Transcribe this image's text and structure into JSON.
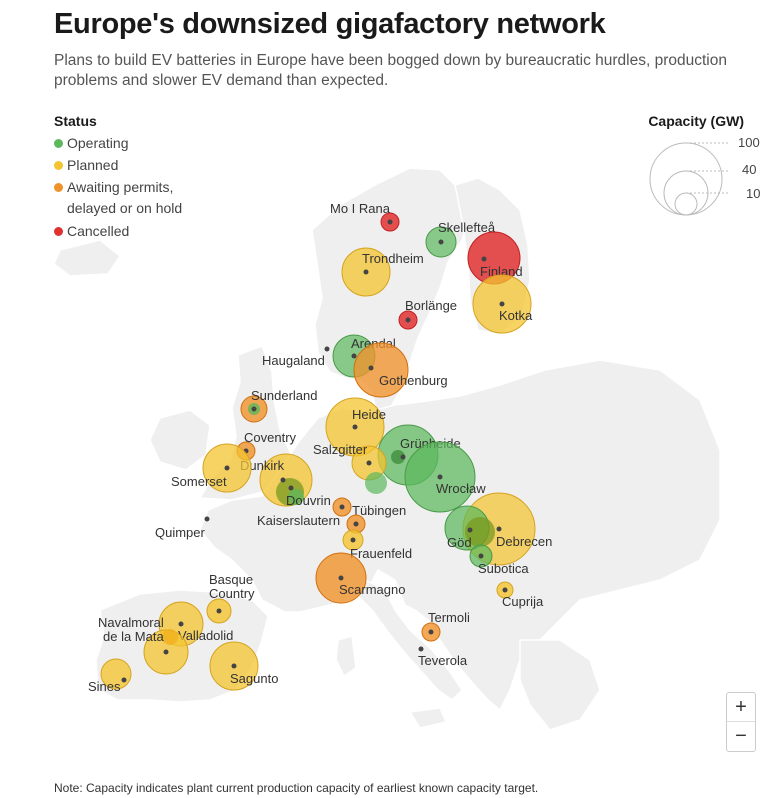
{
  "header": {
    "title": "Europe's downsized gigafactory network",
    "subtitle": "Plans to build EV batteries in Europe have been bogged down by bureaucratic hurdles, production problems and slower EV demand than expected."
  },
  "status_legend": {
    "heading": "Status",
    "items": [
      {
        "label": "Operating",
        "color": "#5cb85c"
      },
      {
        "label": "Planned",
        "color": "#f4c430"
      },
      {
        "label": "Awaiting permits,\ndelayed or on hold",
        "color": "#f0922b"
      },
      {
        "label": "Cancelled",
        "color": "#e03131"
      }
    ]
  },
  "capacity_legend": {
    "heading": "Capacity (GW)",
    "values": [
      "100",
      "40",
      "10"
    ]
  },
  "status_colors": {
    "operating": "#5cb85c",
    "planned": "#f4c430",
    "delayed": "#f0922b",
    "cancelled": "#e03131"
  },
  "sites": [
    {
      "name": "Mo I Rana",
      "status": "cancelled",
      "capacity": "small"
    },
    {
      "name": "Skellefteå",
      "status": "operating",
      "capacity": "small"
    },
    {
      "name": "Finland",
      "status": "cancelled",
      "capacity": "large"
    },
    {
      "name": "Trondheim",
      "status": "planned",
      "capacity": "medium"
    },
    {
      "name": "Borlänge",
      "status": "cancelled",
      "capacity": "small"
    },
    {
      "name": "Kotka",
      "status": "planned",
      "capacity": "medium"
    },
    {
      "name": "Arendal",
      "status": "operating",
      "capacity": "medium"
    },
    {
      "name": "Haugaland",
      "status": "",
      "capacity": "none"
    },
    {
      "name": "Gothenburg",
      "status": "delayed",
      "capacity": "medium"
    },
    {
      "name": "Sunderland",
      "status": "delayed",
      "capacity": "small"
    },
    {
      "name": "Heide",
      "status": "planned",
      "capacity": "medium"
    },
    {
      "name": "Grünheide",
      "status": "operating",
      "capacity": "large"
    },
    {
      "name": "Coventry",
      "status": "delayed",
      "capacity": "small"
    },
    {
      "name": "Salzgitter",
      "status": "planned",
      "capacity": "small"
    },
    {
      "name": "Dunkirk",
      "status": "planned",
      "capacity": "medium"
    },
    {
      "name": "Somerset",
      "status": "planned",
      "capacity": "medium"
    },
    {
      "name": "Wrocław",
      "status": "operating",
      "capacity": "large"
    },
    {
      "name": "Douvrin",
      "status": "operating",
      "capacity": "small"
    },
    {
      "name": "Tübingen",
      "status": "delayed",
      "capacity": "small"
    },
    {
      "name": "Kaiserslautern",
      "status": "delayed",
      "capacity": "small"
    },
    {
      "name": "Quimper",
      "status": "",
      "capacity": "none"
    },
    {
      "name": "Göd",
      "status": "operating",
      "capacity": "medium"
    },
    {
      "name": "Debrecen",
      "status": "planned",
      "capacity": "large"
    },
    {
      "name": "Frauenfeld",
      "status": "planned",
      "capacity": "small"
    },
    {
      "name": "Subotica",
      "status": "operating",
      "capacity": "small"
    },
    {
      "name": "Scarmagno",
      "status": "delayed",
      "capacity": "medium"
    },
    {
      "name": "Cuprija",
      "status": "planned",
      "capacity": "small"
    },
    {
      "name": "Basque\nCountry",
      "status": "planned",
      "capacity": "small"
    },
    {
      "name": "Navalmoral\nde la Mata",
      "status": "planned",
      "capacity": "medium"
    },
    {
      "name": "Valladolid",
      "status": "planned",
      "capacity": "medium"
    },
    {
      "name": "Termoli",
      "status": "delayed",
      "capacity": "small"
    },
    {
      "name": "Teverola",
      "status": "",
      "capacity": "none"
    },
    {
      "name": "Sagunto",
      "status": "planned",
      "capacity": "medium"
    },
    {
      "name": "Sines",
      "status": "planned",
      "capacity": "small"
    }
  ],
  "zoom": {
    "in": "+",
    "out": "−"
  },
  "note": "Note: Capacity indicates plant current production capacity of earliest known capacity target."
}
